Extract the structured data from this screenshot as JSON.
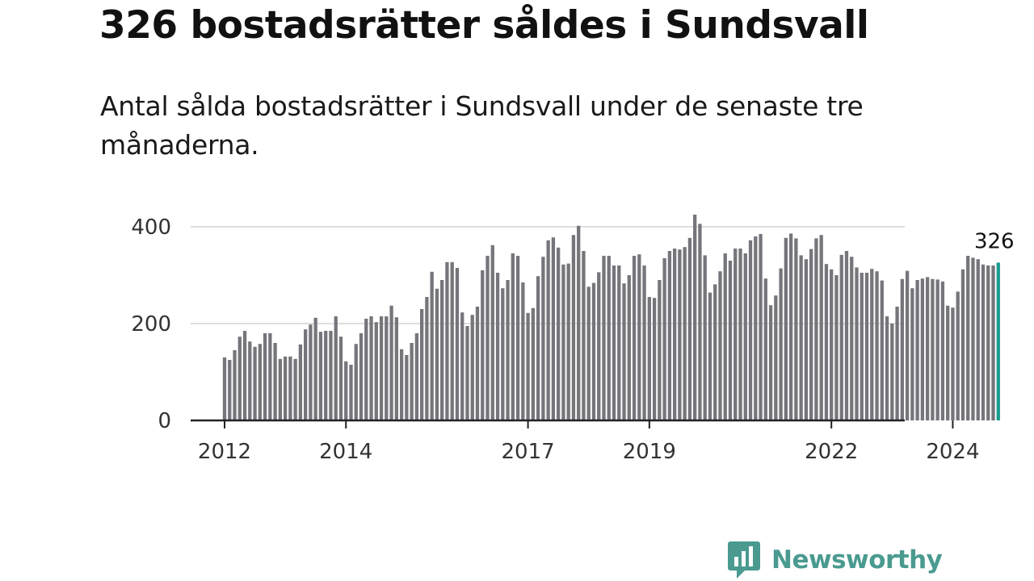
{
  "header": {
    "title": "326 bostadsrätter såldes i Sundsvall",
    "subtitle": "Antal sålda bostadsrätter i Sundsvall under de senaste tre månaderna."
  },
  "chart_data": {
    "type": "bar",
    "title": "326 bostadsrätter såldes i Sundsvall",
    "subtitle": "Antal sålda bostadsrätter i Sundsvall under de senaste tre månaderna.",
    "x_start": "2012-01",
    "x_end": "2024-09",
    "x_ticks": [
      "2012",
      "2014",
      "2017",
      "2019",
      "2022",
      "2024"
    ],
    "y_ticks": [
      "0",
      "200",
      "400"
    ],
    "ylim": [
      0,
      450
    ],
    "grid": true,
    "values": [
      130,
      125,
      145,
      173,
      185,
      163,
      152,
      158,
      180,
      180,
      160,
      127,
      132,
      132,
      127,
      157,
      188,
      198,
      212,
      183,
      185,
      185,
      215,
      173,
      122,
      115,
      158,
      180,
      210,
      215,
      203,
      215,
      215,
      237,
      213,
      147,
      135,
      160,
      180,
      230,
      255,
      307,
      272,
      290,
      327,
      327,
      315,
      223,
      195,
      218,
      235,
      310,
      340,
      362,
      305,
      273,
      290,
      345,
      340,
      285,
      222,
      232,
      298,
      338,
      372,
      378,
      357,
      322,
      324,
      383,
      402,
      350,
      276,
      284,
      306,
      340,
      340,
      320,
      320,
      283,
      300,
      340,
      343,
      320,
      255,
      253,
      290,
      335,
      350,
      355,
      353,
      358,
      377,
      425,
      406,
      341,
      264,
      281,
      308,
      345,
      330,
      355,
      355,
      345,
      372,
      380,
      385,
      293,
      238,
      258,
      314,
      377,
      386,
      376,
      341,
      333,
      354,
      376,
      383,
      323,
      312,
      300,
      342,
      350,
      338,
      316,
      305,
      305,
      313,
      308,
      289,
      215,
      200,
      235,
      292,
      309,
      273,
      290,
      293,
      296,
      292,
      291,
      287,
      237,
      233,
      266,
      312,
      340,
      336,
      333,
      322,
      320,
      320,
      326
    ],
    "highlight_last": true,
    "last_value_label": "326",
    "colors": {
      "bar": "#76757c",
      "highlight": "#1a9b8f",
      "grid": "#d3d3d3",
      "axis": "#222222"
    }
  },
  "brand": {
    "name": "Newsworthy",
    "color": "#4a9a90",
    "icon": "bar-chart-speech-bubble-icon"
  }
}
